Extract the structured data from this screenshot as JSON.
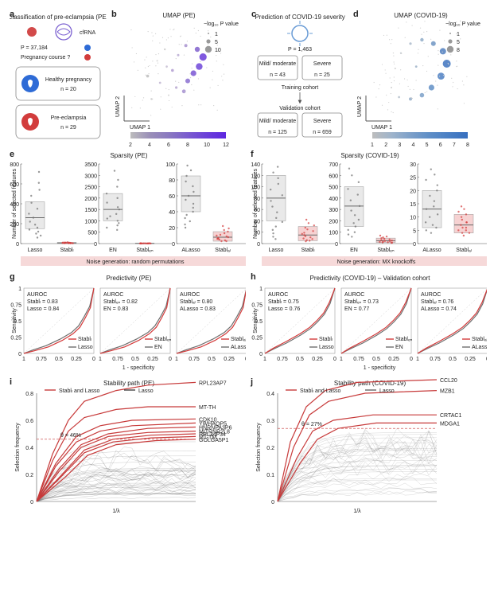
{
  "a": {
    "title": "Classification of pre-eclampsia (PE)",
    "icons": [
      "drop-icon",
      "wave-icon"
    ],
    "cfRNA": "cfRNA",
    "p_feat": "P = 37,184",
    "course": "Pregnancy course ?",
    "healthy": {
      "icon": "baby-icon",
      "label": "Healthy pregnancy",
      "n": "n = 20",
      "fill": "#2e6bd6"
    },
    "pe": {
      "icon": "baby-icon",
      "label": "Pre-eclampsia",
      "n": "n = 29",
      "fill": "#d23c3c"
    }
  },
  "b": {
    "title": "UMAP (PE)",
    "xlabel": "UMAP 1",
    "ylabel": "UMAP 2",
    "legend_title": "−log₁₀ P value",
    "legend_sizes": [
      "1",
      "5",
      "10"
    ],
    "cbar_label": "−log₁₀ P value",
    "cbar_ticks": [
      "2",
      "4",
      "6",
      "8",
      "10",
      "12"
    ],
    "gradient": [
      "#bdbdbd",
      "#9a8fb8",
      "#8a79c0",
      "#7a5bcf",
      "#6b3fd9",
      "#5d26e0"
    ],
    "points": [
      {
        "x": 0.22,
        "y": 0.18,
        "r": 1.2,
        "c": "#c6c6c6"
      },
      {
        "x": 0.18,
        "y": 0.42,
        "r": 1.8,
        "c": "#bdbdbd"
      },
      {
        "x": 0.31,
        "y": 0.35,
        "r": 1.4,
        "c": "#c0b5d1"
      },
      {
        "x": 0.4,
        "y": 0.22,
        "r": 1.0,
        "c": "#cfcfcf"
      },
      {
        "x": 0.48,
        "y": 0.3,
        "r": 1.6,
        "c": "#b7a7d0"
      },
      {
        "x": 0.56,
        "y": 0.26,
        "r": 2.4,
        "c": "#a58fd0"
      },
      {
        "x": 0.6,
        "y": 0.37,
        "r": 3.0,
        "c": "#8a6fd0"
      },
      {
        "x": 0.66,
        "y": 0.45,
        "r": 3.6,
        "c": "#7a56d4"
      },
      {
        "x": 0.72,
        "y": 0.52,
        "r": 4.2,
        "c": "#6f46d8"
      },
      {
        "x": 0.76,
        "y": 0.62,
        "r": 4.6,
        "c": "#6a3cd9"
      },
      {
        "x": 0.7,
        "y": 0.7,
        "r": 3.2,
        "c": "#8060cd"
      },
      {
        "x": 0.58,
        "y": 0.74,
        "r": 2.0,
        "c": "#a893cf"
      },
      {
        "x": 0.5,
        "y": 0.64,
        "r": 1.5,
        "c": "#b8aad2"
      },
      {
        "x": 0.36,
        "y": 0.7,
        "r": 1.2,
        "c": "#c9c9c9"
      },
      {
        "x": 0.28,
        "y": 0.58,
        "r": 1.0,
        "c": "#cfcfcf"
      },
      {
        "x": 0.44,
        "y": 0.48,
        "r": 1.8,
        "c": "#b19cd1"
      },
      {
        "x": 0.38,
        "y": 0.52,
        "r": 1.3,
        "c": "#c4bbd4"
      }
    ]
  },
  "c": {
    "title": "Prediction of COVID-19 severity",
    "p_feat": "P = 1,463",
    "train": "Training cohort",
    "valid": "Validation cohort",
    "train_mild": {
      "label": "Mild/\nmoderate",
      "n": "n = 43"
    },
    "train_sev": {
      "label": "Severe",
      "n": "n = 25"
    },
    "valid_mild": {
      "label": "Mild/\nmoderate",
      "n": "n = 125"
    },
    "valid_sev": {
      "label": "Severe",
      "n": "n = 659"
    },
    "virus_fill": "#6a9cd6"
  },
  "d": {
    "title": "UMAP (COVID-19)",
    "xlabel": "UMAP 1",
    "ylabel": "UMAP 2",
    "legend_title": "−log₁₀ P value",
    "legend_sizes": [
      "1",
      "5",
      "8"
    ],
    "cbar_label": "−log₁₀ P value",
    "cbar_ticks": [
      "1",
      "2",
      "3",
      "4",
      "5",
      "6",
      "7",
      "8"
    ],
    "gradient": [
      "#bdbdbd",
      "#9fb4cb",
      "#7da0c9",
      "#5e8ec7",
      "#4a7fc4",
      "#376fbf"
    ],
    "points": [
      {
        "x": 0.2,
        "y": 0.3,
        "r": 1.0,
        "c": "#c6c6c6"
      },
      {
        "x": 0.28,
        "y": 0.2,
        "r": 1.4,
        "c": "#b6c1cd"
      },
      {
        "x": 0.4,
        "y": 0.18,
        "r": 2.0,
        "c": "#94adc8"
      },
      {
        "x": 0.52,
        "y": 0.22,
        "r": 2.8,
        "c": "#7ba0c8"
      },
      {
        "x": 0.62,
        "y": 0.3,
        "r": 3.6,
        "c": "#628fc5"
      },
      {
        "x": 0.72,
        "y": 0.42,
        "r": 4.4,
        "c": "#4d80c3"
      },
      {
        "x": 0.78,
        "y": 0.55,
        "r": 5.0,
        "c": "#3f74bf"
      },
      {
        "x": 0.74,
        "y": 0.68,
        "r": 4.0,
        "c": "#507fbf"
      },
      {
        "x": 0.64,
        "y": 0.76,
        "r": 3.0,
        "c": "#6e95c3"
      },
      {
        "x": 0.52,
        "y": 0.8,
        "r": 2.2,
        "c": "#8fabc8"
      },
      {
        "x": 0.4,
        "y": 0.76,
        "r": 1.6,
        "c": "#aabacb"
      },
      {
        "x": 0.3,
        "y": 0.66,
        "r": 1.2,
        "c": "#c0c6cb"
      },
      {
        "x": 0.24,
        "y": 0.5,
        "r": 1.0,
        "c": "#c8c8c8"
      },
      {
        "x": 0.46,
        "y": 0.52,
        "r": 1.4,
        "c": "#9cb1c8"
      }
    ]
  },
  "e": {
    "title": "Sparsity (PE)",
    "ylab": "Number of selected features",
    "noise": "Noise generation: random permutations",
    "sub": [
      {
        "labels": [
          "Lasso",
          "Stablₗ"
        ],
        "ymax": 800,
        "yticks": [
          0,
          200,
          400,
          600,
          800
        ],
        "box1": {
          "q1": 150,
          "med": 260,
          "q3": 420
        },
        "box2": {
          "q1": 4,
          "med": 7,
          "q3": 11
        },
        "jit1": [
          720,
          610,
          540,
          480,
          410,
          350,
          300,
          260,
          220,
          190,
          160,
          140,
          120,
          100,
          80,
          60
        ],
        "jit2": [
          13,
          11,
          10,
          9,
          8,
          7,
          7,
          6,
          6,
          5,
          5,
          5,
          4,
          4,
          3,
          3
        ]
      },
      {
        "labels": [
          "EN",
          "Stablₑₙ"
        ],
        "ymax": 3500,
        "yticks": [
          0,
          500,
          1000,
          1500,
          2000,
          2500,
          3000,
          3500
        ],
        "box1": {
          "q1": 1000,
          "med": 1500,
          "q3": 2200
        },
        "box2": {
          "q1": 4,
          "med": 8,
          "q3": 12
        },
        "jit1": [
          3200,
          2800,
          2500,
          2200,
          2000,
          1800,
          1600,
          1500,
          1300,
          1200,
          1100,
          1000,
          900,
          800,
          700,
          600
        ],
        "jit2": [
          14,
          12,
          11,
          10,
          9,
          8,
          8,
          7,
          7,
          6,
          6,
          5,
          5,
          4,
          4,
          3
        ]
      },
      {
        "labels": [
          "ALasso",
          "Stablₐₗ"
        ],
        "ymax": 100,
        "yticks": [
          0,
          20,
          40,
          60,
          80,
          100
        ],
        "box1": {
          "q1": 40,
          "med": 60,
          "q3": 85
        },
        "box2": {
          "q1": 3,
          "med": 8,
          "q3": 15
        },
        "jit1": [
          98,
          92,
          85,
          78,
          72,
          65,
          60,
          55,
          50,
          45,
          40,
          36,
          32,
          28,
          24,
          20
        ],
        "jit2": [
          22,
          19,
          17,
          15,
          13,
          11,
          10,
          9,
          8,
          7,
          6,
          6,
          5,
          4,
          3,
          3
        ]
      }
    ],
    "c1": "#6e6e6e",
    "c2": "#d43a3a",
    "box_fill": "#e9e9e9",
    "box2_fill": "#f6d2d2"
  },
  "f": {
    "title": "Sparsity (COVID-19)",
    "ylab": "Number of selected features",
    "noise": "Noise generation: MX knockoffs",
    "sub": [
      {
        "labels": [
          "Lasso",
          "Stablₗ"
        ],
        "ymax": 140,
        "yticks": [
          0,
          20,
          40,
          60,
          80,
          100,
          120,
          140
        ],
        "box1": {
          "q1": 40,
          "med": 80,
          "q3": 120
        },
        "box2": {
          "q1": 5,
          "med": 15,
          "q3": 30
        },
        "jit1": [
          135,
          125,
          115,
          105,
          95,
          85,
          75,
          65,
          55,
          45,
          38,
          30,
          24,
          18,
          12,
          8
        ],
        "jit2": [
          42,
          36,
          32,
          28,
          25,
          22,
          19,
          17,
          15,
          13,
          11,
          9,
          8,
          6,
          5,
          4
        ]
      },
      {
        "labels": [
          "EN",
          "Stablₑₙ"
        ],
        "ymax": 700,
        "yticks": [
          0,
          100,
          200,
          300,
          400,
          500,
          600,
          700
        ],
        "box1": {
          "q1": 150,
          "med": 330,
          "q3": 500
        },
        "box2": {
          "q1": 10,
          "med": 25,
          "q3": 48
        },
        "jit1": [
          660,
          600,
          540,
          480,
          430,
          380,
          330,
          290,
          250,
          210,
          180,
          150,
          120,
          100,
          80,
          60
        ],
        "jit2": [
          70,
          62,
          55,
          48,
          42,
          36,
          31,
          27,
          23,
          20,
          17,
          14,
          12,
          10,
          8,
          6
        ]
      },
      {
        "labels": [
          "ALasso",
          "Stablₐₗ"
        ],
        "ymax": 30,
        "yticks": [
          0,
          5,
          10,
          15,
          20,
          25,
          30
        ],
        "box1": {
          "q1": 6,
          "med": 13,
          "q3": 20
        },
        "box2": {
          "q1": 4,
          "med": 7,
          "q3": 11
        },
        "jit1": [
          28,
          26,
          24,
          22,
          20,
          18,
          16,
          14,
          13,
          11,
          10,
          8,
          7,
          6,
          5,
          4
        ],
        "jit2": [
          14,
          13,
          12,
          11,
          10,
          9,
          8,
          8,
          7,
          6,
          6,
          5,
          5,
          4,
          4,
          3
        ]
      }
    ],
    "c1": "#6e6e6e",
    "c2": "#d43a3a",
    "box_fill": "#e9e9e9",
    "box2_fill": "#f6d2d2"
  },
  "g": {
    "title": "Predictivity (PE)",
    "xlab": "1 - specificity",
    "ylab": "Sensitivity",
    "sub": [
      {
        "a": {
          "name": "Stablₗ",
          "auc": "0.83",
          "c": "#d43a3a"
        },
        "b": {
          "name": "Lasso",
          "auc": "0.84",
          "c": "#6e6e6e"
        }
      },
      {
        "a": {
          "name": "Stablₑₙ",
          "auc": "0.82",
          "c": "#d43a3a"
        },
        "b": {
          "name": "EN",
          "auc": "0.83",
          "c": "#6e6e6e"
        }
      },
      {
        "a": {
          "name": "Stablₐₗ",
          "auc": "0.80",
          "c": "#d43a3a"
        },
        "b": {
          "name": "ALasso",
          "auc": "0.83",
          "c": "#6e6e6e"
        }
      }
    ],
    "ticks": [
      "1",
      "0.75",
      "0.5",
      "0.25",
      "0"
    ],
    "yticks": [
      "0",
      "0.25",
      "0.5",
      "0.75",
      "1"
    ],
    "roc_a": "0,1 0.05,0.70 0.12,0.55 0.20,0.40 0.30,0.30 0.45,0.20 0.65,0.10 0.85,0.04 1,0",
    "roc_b": "0,1 0.06,0.72 0.14,0.56 0.22,0.42 0.32,0.32 0.48,0.22 0.68,0.12 0.88,0.05 1,0"
  },
  "h": {
    "title": "Predictivity (COVID-19) – Validation cohort",
    "xlab": "1 - specificity",
    "ylab": "Sensitivity",
    "sub": [
      {
        "a": {
          "name": "Stablₗ",
          "auc": "0.75",
          "c": "#d43a3a"
        },
        "b": {
          "name": "Lasso",
          "auc": "0.76",
          "c": "#6e6e6e"
        }
      },
      {
        "a": {
          "name": "Stablₑₙ",
          "auc": "0.73",
          "c": "#d43a3a"
        },
        "b": {
          "name": "EN",
          "auc": "0.77",
          "c": "#6e6e6e"
        }
      },
      {
        "a": {
          "name": "Stablₐₗ",
          "auc": "0.76",
          "c": "#d43a3a"
        },
        "b": {
          "name": "ALasso",
          "auc": "0.74",
          "c": "#6e6e6e"
        }
      }
    ],
    "ticks": [
      "1",
      "0.75",
      "0.5",
      "0.25",
      "0"
    ],
    "yticks": [
      "0",
      "0.25",
      "0.5",
      "0.75",
      "1"
    ],
    "roc_a": "0,1 0.08,0.78 0.16,0.62 0.26,0.50 0.36,0.40 0.50,0.30 0.70,0.18 0.88,0.08 1,0",
    "roc_b": "0,1 0.07,0.76 0.15,0.60 0.25,0.48 0.35,0.38 0.49,0.28 0.69,0.16 0.87,0.07 1,0"
  },
  "i": {
    "title": "Stability path (PE)",
    "xlab": "1/λ",
    "ylab": "Selection frequency",
    "legend": {
      "a": "Stablₗ and Lasso",
      "b": "Lasso"
    },
    "theta": {
      "label": "θ = 46%",
      "y": 0.46
    },
    "yticks": [
      "0",
      "0.2",
      "0.4",
      "0.6",
      "0.8"
    ],
    "labels": [
      "RPL23AP7",
      "MT-TH",
      "CDK10",
      "YWHAQP5",
      "HNRNPA3P6",
      "MITRNR2L8",
      "RPL34P34",
      "MT-TM",
      "GOLGA5P1"
    ],
    "red_paths": [
      "0,0 0.1,0.35 0.2,0.60 0.3,0.74 0.5,0.82 0.7,0.86 1,0.88",
      "0,0 0.1,0.30 0.2,0.52 0.3,0.62 0.5,0.68 0.7,0.70 1,0.70",
      "0,0 0.12,0.28 0.25,0.48 0.4,0.56 0.6,0.60 1,0.61",
      "0,0 0.12,0.26 0.25,0.44 0.4,0.52 0.6,0.56 1,0.58",
      "0,0 0.14,0.24 0.28,0.42 0.45,0.50 0.7,0.54 1,0.55",
      "0,0 0.14,0.22 0.28,0.40 0.45,0.48 0.7,0.51 1,0.52",
      "0,0 0.16,0.20 0.30,0.38 0.48,0.46 0.72,0.49 1,0.50",
      "0,0 0.16,0.19 0.30,0.36 0.48,0.44 0.72,0.47 1,0.48",
      "0,0 0.18,0.18 0.32,0.34 0.50,0.42 0.75,0.45 1,0.46"
    ],
    "grey_n": 40,
    "c_red": "#c73a3a",
    "c_grey": "#444444"
  },
  "j": {
    "title": "Stability path (COVID-19)",
    "xlab": "1/λ",
    "ylab": "Selection frequency",
    "legend": {
      "a": "Stablₗ and Lasso",
      "b": "Lasso"
    },
    "theta": {
      "label": "θ = 27%",
      "y": 0.27
    },
    "yticks": [
      "0",
      "0.1",
      "0.2",
      "0.3",
      "0.4"
    ],
    "labels": [
      "CCL20",
      "MZB1",
      "CRTAC1",
      "MDGA1"
    ],
    "red_paths": [
      "0,0 0.08,0.22 0.18,0.35 0.30,0.41 0.5,0.44 1,0.45",
      "0,0 0.10,0.20 0.20,0.32 0.32,0.37 0.55,0.40 1,0.41",
      "0,0 0.12,0.16 0.22,0.26 0.35,0.30 0.60,0.32 1,0.32",
      "0,0 0.14,0.14 0.25,0.23 0.38,0.27 0.62,0.29 1,0.29"
    ],
    "grey_n": 40,
    "c_red": "#c73a3a",
    "c_grey": "#666666"
  }
}
